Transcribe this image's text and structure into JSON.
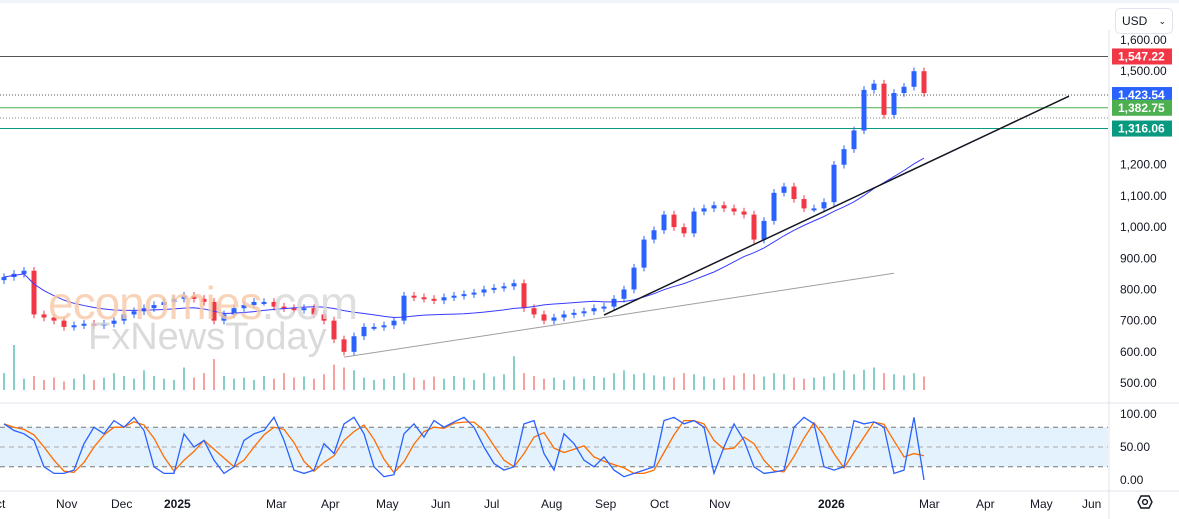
{
  "currency": {
    "selected": "USD"
  },
  "watermark": {
    "brand_main": "economies",
    "brand_suffix": ".com",
    "sub": "FxNewsToday"
  },
  "price_axis": {
    "ticks": [
      "1,600.00",
      "1,500.00",
      "1,200.00",
      "1,100.00",
      "1,000.00",
      "900.00",
      "800.00",
      "700.00",
      "600.00",
      "500.00"
    ],
    "tick_values": [
      1600,
      1500,
      1200,
      1100,
      1000,
      900,
      800,
      700,
      600,
      500
    ]
  },
  "price_tags": [
    {
      "label": "1,547.22",
      "value": 1547.22,
      "color": "#f23645",
      "line": "solid"
    },
    {
      "label": "1,423.54",
      "value": 1423.54,
      "color": "#2962ff",
      "line": "dotted"
    },
    {
      "label": "1,382.75",
      "value": 1382.75,
      "color": "#4caf50",
      "line": "solid"
    },
    {
      "label": "1,316.06",
      "value": 1316.06,
      "color": "#089981",
      "line": "solid"
    }
  ],
  "osc_axis": {
    "ticks": [
      "100.00",
      "50.00",
      "0.00"
    ],
    "tick_values": [
      100,
      50,
      0
    ]
  },
  "time_axis": [
    {
      "label": "ct",
      "i": 0
    },
    {
      "label": "Nov",
      "i": 6
    },
    {
      "label": "Dec",
      "i": 11.5
    },
    {
      "label": "2025",
      "i": 16.8,
      "bold": true
    },
    {
      "label": "Mar",
      "i": 27
    },
    {
      "label": "Apr",
      "i": 32.5
    },
    {
      "label": "May",
      "i": 38
    },
    {
      "label": "Jun",
      "i": 43.5
    },
    {
      "label": "Jul",
      "i": 48.8
    },
    {
      "label": "Aug",
      "i": 54.5
    },
    {
      "label": "Sep",
      "i": 59.9
    },
    {
      "label": "Oct",
      "i": 65.4
    },
    {
      "label": "Nov",
      "i": 71.3
    },
    {
      "label": "2026",
      "i": 82.2,
      "bold": true
    },
    {
      "label": "Mar",
      "i": 92.3
    },
    {
      "label": "Apr",
      "i": 98
    },
    {
      "label": "May",
      "i": 103.4
    },
    {
      "label": "Jun",
      "i": 108.6
    }
  ],
  "colors": {
    "up": "#2962ff",
    "down": "#f23645",
    "sma": "#3a3aff",
    "stoch_k": "#2962ff",
    "stoch_d": "#ff6d00",
    "band": "#e3f2fd"
  },
  "chart_data": {
    "type": "candlestick",
    "ylim": [
      500,
      1600
    ],
    "closes": [
      840,
      850,
      860,
      720,
      710,
      700,
      680,
      685,
      690,
      685,
      690,
      700,
      720,
      730,
      740,
      750,
      760,
      770,
      780,
      770,
      760,
      700,
      720,
      740,
      750,
      760,
      760,
      745,
      740,
      735,
      740,
      720,
      700,
      640,
      600,
      650,
      680,
      680,
      685,
      700,
      780,
      775,
      770,
      765,
      775,
      780,
      785,
      790,
      800,
      805,
      810,
      820,
      740,
      720,
      700,
      710,
      720,
      725,
      730,
      740,
      745,
      770,
      800,
      870,
      960,
      990,
      1040,
      1000,
      980,
      1050,
      1060,
      1070,
      1060,
      1050,
      1040,
      960,
      1020,
      1110,
      1130,
      1090,
      1060,
      1060,
      1080,
      1200,
      1250,
      1310,
      1440,
      1460,
      1360,
      1430,
      1450,
      1500,
      1430
    ],
    "volumes": [
      30,
      80,
      20,
      25,
      18,
      22,
      15,
      20,
      28,
      18,
      22,
      30,
      25,
      20,
      35,
      25,
      20,
      18,
      40,
      22,
      30,
      55,
      25,
      20,
      22,
      18,
      25,
      20,
      30,
      22,
      24,
      20,
      28,
      45,
      40,
      35,
      22,
      18,
      20,
      25,
      30,
      22,
      18,
      24,
      20,
      25,
      22,
      18,
      30,
      24,
      28,
      60,
      30,
      25,
      20,
      22,
      18,
      24,
      20,
      25,
      22,
      30,
      35,
      28,
      30,
      26,
      24,
      22,
      30,
      28,
      24,
      20,
      22,
      26,
      30,
      28,
      24,
      30,
      28,
      22,
      20,
      22,
      24,
      30,
      35,
      28,
      36,
      40,
      30,
      28,
      26,
      30,
      24
    ],
    "stoch_k": [
      85,
      75,
      70,
      60,
      20,
      10,
      10,
      15,
      55,
      80,
      70,
      90,
      80,
      95,
      75,
      20,
      10,
      10,
      70,
      50,
      60,
      30,
      10,
      20,
      60,
      70,
      75,
      95,
      60,
      15,
      10,
      15,
      55,
      40,
      85,
      95,
      70,
      20,
      5,
      8,
      70,
      85,
      65,
      90,
      80,
      88,
      95,
      80,
      50,
      25,
      15,
      20,
      85,
      90,
      40,
      15,
      70,
      55,
      30,
      20,
      35,
      15,
      5,
      10,
      15,
      20,
      90,
      95,
      85,
      90,
      80,
      10,
      50,
      85,
      60,
      20,
      10,
      12,
      15,
      80,
      95,
      85,
      20,
      15,
      20,
      90,
      85,
      88,
      80,
      10,
      15,
      95,
      0
    ],
    "sma_period": 20,
    "trendlines": [
      {
        "name": "support-trendline",
        "from": [
          60,
          718
        ],
        "to": [
          106.5,
          1420
        ],
        "color": "#131722"
      },
      {
        "name": "long-trendline",
        "from": [
          34,
          583
        ],
        "to": [
          89,
          852
        ],
        "color": "#9e9e9e"
      }
    ]
  }
}
